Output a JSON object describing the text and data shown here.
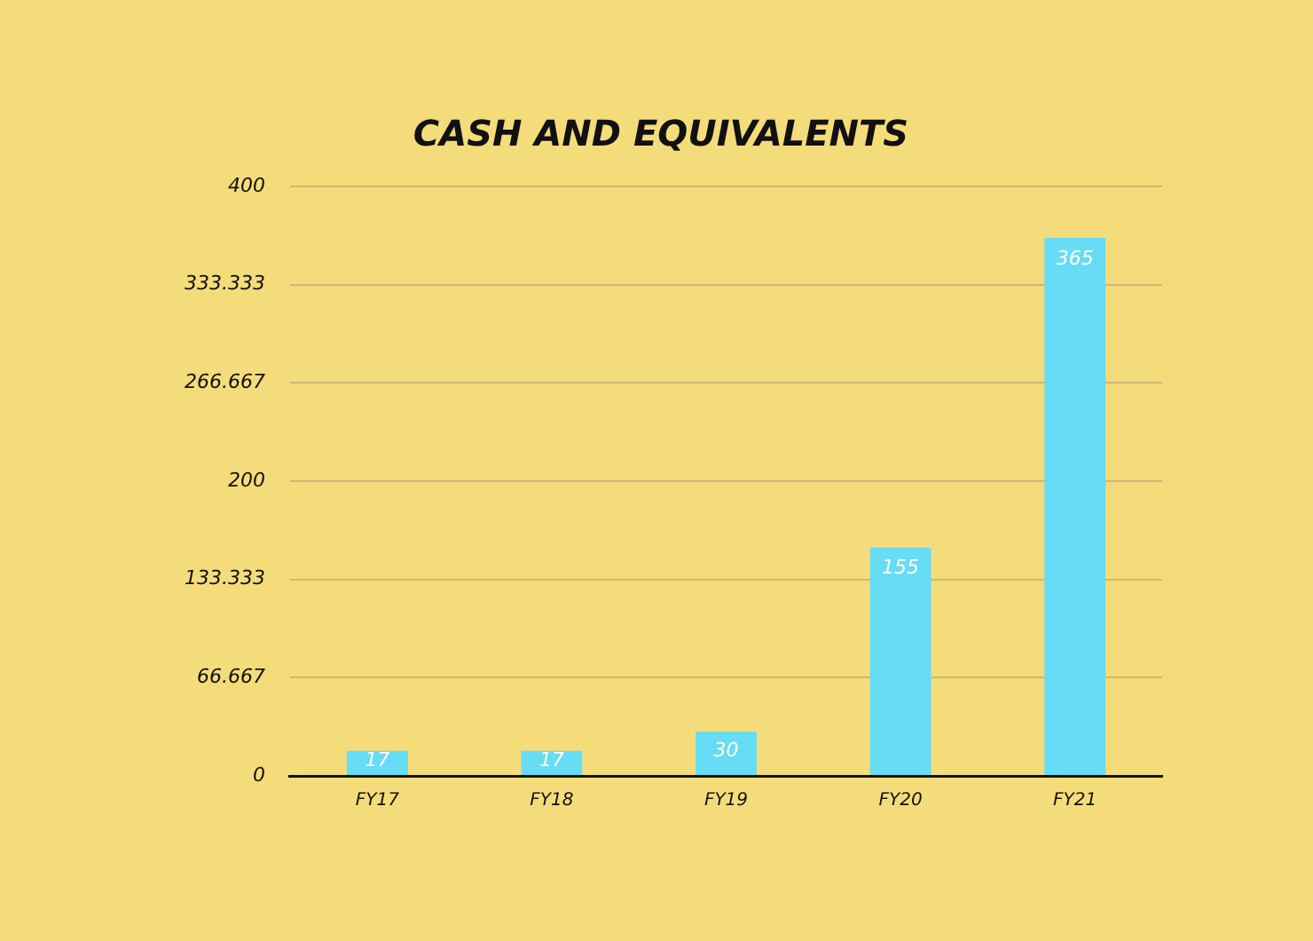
{
  "chart_data": {
    "type": "bar",
    "title": "CASH AND EQUIVALENTS",
    "categories": [
      "FY17",
      "FY18",
      "FY19",
      "FY20",
      "FY21"
    ],
    "values": [
      17,
      17,
      30,
      155,
      365
    ],
    "color": "#66dcf5",
    "ylim": [
      0,
      400
    ],
    "yticks": [
      0,
      66.667,
      133.333,
      200,
      266.667,
      333.333,
      400
    ],
    "grid": "y",
    "data_labels": true
  }
}
